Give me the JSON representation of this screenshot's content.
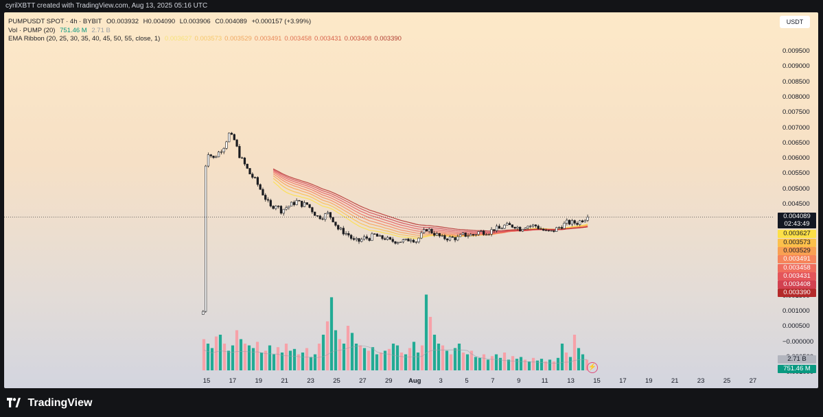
{
  "header": {
    "text": "cyrilXBTT created with TradingView.com, Aug 13, 2025 05:16 UTC"
  },
  "legend": {
    "line1": {
      "symbol": "PUMPUSDT SPOT · 4h · BYBIT",
      "open": "O0.003932",
      "high": "H0.004090",
      "low": "L0.003906",
      "close": "C0.004089",
      "change": "+0.000157 (+3.99%)"
    },
    "line2": {
      "label": "Vol · PUMP (20)",
      "vol": "751.46 M",
      "ma": "2.71 B"
    },
    "line3": {
      "label": "EMA Ribbon (20, 25, 30, 35, 40, 45, 50, 55, close, 1)",
      "values": [
        "0.003627",
        "0.003573",
        "0.003529",
        "0.003491",
        "0.003458",
        "0.003431",
        "0.003408",
        "0.003390"
      ]
    }
  },
  "unit": "USDT",
  "price_tags": {
    "last": "0.004089",
    "countdown": "02:43:49",
    "ema": [
      "0.003627",
      "0.003573",
      "0.003529",
      "0.003491",
      "0.003458",
      "0.003431",
      "0.003408",
      "0.003390"
    ],
    "vol_ma": "2.71 B",
    "vol": "751.46 M"
  },
  "colors": {
    "up": "#089981",
    "down": "#f23645",
    "vol_up": "#22ab94",
    "vol_down": "#f7a1a8",
    "ema": [
      "#fde046",
      "#fcc04a",
      "#f9a052",
      "#f6845a",
      "#f06c5c",
      "#e4555a",
      "#d24150",
      "#b42a2a"
    ]
  },
  "footer": {
    "brand": "TradingView"
  },
  "chart_data": {
    "type": "candlestick",
    "title": "PUMPUSDT SPOT · 4h · BYBIT",
    "y_axis_ticks": [
      "0.009500",
      "0.009000",
      "0.008500",
      "0.008000",
      "0.007500",
      "0.007000",
      "0.006500",
      "0.006000",
      "0.005500",
      "0.005000",
      "0.004500",
      "0.001500",
      "0.001000",
      "0.000500",
      "−0.000000",
      "−0.000500",
      "−0.001000"
    ],
    "x_axis_ticks": [
      "15",
      "17",
      "19",
      "21",
      "23",
      "25",
      "27",
      "29",
      "Aug",
      "3",
      "5",
      "7",
      "9",
      "11",
      "13",
      "15",
      "17",
      "19",
      "21",
      "23",
      "25",
      "27"
    ],
    "ylim": [
      -0.0011,
      0.0099
    ],
    "x_start": "2025-07-14",
    "bar_interval": "4h",
    "last_price": 0.004089,
    "price_path": [
      [
        0,
        0.001
      ],
      [
        1,
        0.0058
      ],
      [
        2,
        0.0062
      ],
      [
        4,
        0.006
      ],
      [
        6,
        0.0062
      ],
      [
        8,
        0.0064
      ],
      [
        10,
        0.0068
      ],
      [
        12,
        0.0066
      ],
      [
        14,
        0.0061
      ],
      [
        16,
        0.0058
      ],
      [
        18,
        0.0055
      ],
      [
        20,
        0.0053
      ],
      [
        22,
        0.005
      ],
      [
        24,
        0.0047
      ],
      [
        26,
        0.0044
      ],
      [
        28,
        0.0045
      ],
      [
        30,
        0.0043
      ],
      [
        32,
        0.0044
      ],
      [
        34,
        0.0045
      ],
      [
        36,
        0.0046
      ],
      [
        38,
        0.0045
      ],
      [
        40,
        0.0045
      ],
      [
        42,
        0.0043
      ],
      [
        44,
        0.0041
      ],
      [
        46,
        0.0041
      ],
      [
        48,
        0.0042
      ],
      [
        50,
        0.004
      ],
      [
        52,
        0.0037
      ],
      [
        54,
        0.0036
      ],
      [
        56,
        0.0035
      ],
      [
        58,
        0.0033
      ],
      [
        60,
        0.0033
      ],
      [
        62,
        0.0034
      ],
      [
        64,
        0.0034
      ],
      [
        66,
        0.0035
      ],
      [
        68,
        0.0034
      ],
      [
        70,
        0.0034
      ],
      [
        72,
        0.0033
      ],
      [
        74,
        0.0033
      ],
      [
        76,
        0.0033
      ],
      [
        78,
        0.0033
      ],
      [
        80,
        0.0034
      ],
      [
        82,
        0.0033
      ],
      [
        84,
        0.0035
      ],
      [
        86,
        0.0037
      ],
      [
        88,
        0.0036
      ],
      [
        90,
        0.0035
      ],
      [
        92,
        0.0034
      ],
      [
        94,
        0.0034
      ],
      [
        96,
        0.0034
      ],
      [
        98,
        0.0034
      ],
      [
        100,
        0.0035
      ],
      [
        102,
        0.0035
      ],
      [
        104,
        0.0035
      ],
      [
        106,
        0.0036
      ],
      [
        108,
        0.0036
      ],
      [
        110,
        0.0036
      ],
      [
        112,
        0.0037
      ],
      [
        114,
        0.0037
      ],
      [
        116,
        0.0038
      ],
      [
        118,
        0.0038
      ],
      [
        120,
        0.0038
      ],
      [
        122,
        0.0037
      ],
      [
        124,
        0.0038
      ],
      [
        126,
        0.0038
      ],
      [
        128,
        0.0038
      ],
      [
        130,
        0.0037
      ],
      [
        132,
        0.0036
      ],
      [
        134,
        0.0036
      ],
      [
        136,
        0.0037
      ],
      [
        138,
        0.0038
      ],
      [
        140,
        0.0039
      ],
      [
        142,
        0.0039
      ],
      [
        144,
        0.0039
      ],
      [
        146,
        0.004
      ],
      [
        148,
        0.0041
      ]
    ],
    "volume_levels": [
      0.35,
      0.3,
      0.25,
      0.38,
      0.4,
      0.3,
      0.22,
      0.28,
      0.45,
      0.35,
      0.3,
      0.28,
      0.25,
      0.32,
      0.2,
      0.22,
      0.28,
      0.18,
      0.26,
      0.2,
      0.3,
      0.22,
      0.24,
      0.18,
      0.2,
      0.25,
      0.15,
      0.18,
      0.3,
      0.4,
      0.55,
      0.82,
      0.45,
      0.35,
      0.3,
      0.5,
      0.42,
      0.3,
      0.28,
      0.25,
      0.22,
      0.26,
      0.18,
      0.2,
      0.22,
      0.24,
      0.3,
      0.28,
      0.2,
      0.18,
      0.25,
      0.32,
      0.2,
      0.28,
      0.85,
      0.6,
      0.4,
      0.3,
      0.28,
      0.22,
      0.18,
      0.25,
      0.3,
      0.2,
      0.18,
      0.22,
      0.15,
      0.14,
      0.18,
      0.12,
      0.16,
      0.18,
      0.14,
      0.2,
      0.12,
      0.16,
      0.13,
      0.15,
      0.12,
      0.1,
      0.14,
      0.11,
      0.13,
      0.1,
      0.12,
      0.1,
      0.14,
      0.3,
      0.2,
      0.15,
      0.4,
      0.25,
      0.18,
      0.12
    ]
  }
}
